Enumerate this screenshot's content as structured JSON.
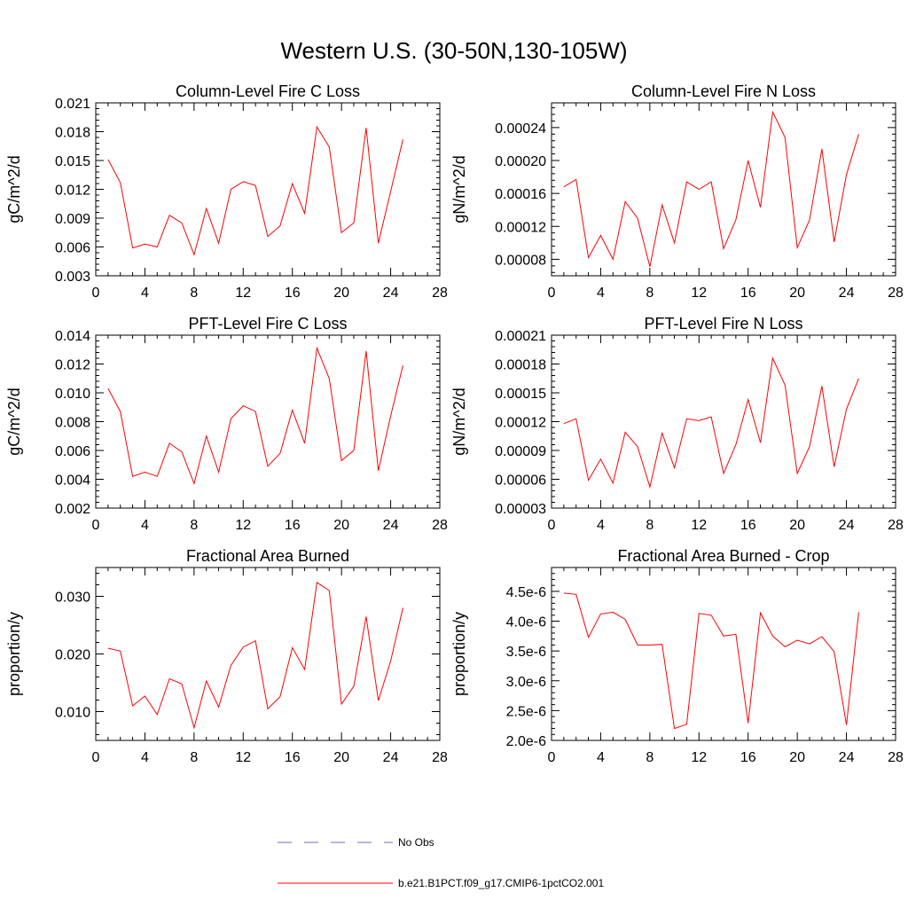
{
  "title": "Western U.S. (30-50N,130-105W)",
  "legend": {
    "items": [
      {
        "label": "No Obs",
        "color": "#6b6bd6",
        "style": "dashed"
      },
      {
        "label": "b.e21.B1PCT.f09_g17.CMIP6-1pctCO2.001",
        "color": "#ff0000",
        "style": "solid"
      }
    ]
  },
  "chart_data": [
    {
      "type": "line",
      "title": "Column-Level Fire C Loss",
      "ylabel": "gC/m^2/d",
      "xlim": [
        0,
        28
      ],
      "ylim": [
        0.003,
        0.021
      ],
      "xticks": [
        0,
        4,
        8,
        12,
        16,
        20,
        24,
        28
      ],
      "yticks": [
        0.003,
        0.006,
        0.009,
        0.012,
        0.015,
        0.018,
        0.021
      ],
      "ytick_labels": [
        "0.003",
        "0.006",
        "0.009",
        "0.012",
        "0.015",
        "0.018",
        "0.021"
      ],
      "series": [
        {
          "color": "#ff0000",
          "x": [
            1,
            2,
            3,
            4,
            5,
            6,
            7,
            8,
            9,
            10,
            11,
            12,
            13,
            14,
            15,
            16,
            17,
            18,
            19,
            20,
            21,
            22,
            23,
            24,
            25
          ],
          "values": [
            0.0151,
            0.0127,
            0.0059,
            0.0063,
            0.006,
            0.0093,
            0.0085,
            0.0052,
            0.01,
            0.0064,
            0.012,
            0.0128,
            0.0124,
            0.0071,
            0.0082,
            0.0126,
            0.0095,
            0.0185,
            0.0164,
            0.0075,
            0.0085,
            0.0184,
            0.0064,
            0.0118,
            0.0172
          ]
        }
      ]
    },
    {
      "type": "line",
      "title": "Column-Level Fire N Loss",
      "ylabel": "gN/m^2/d",
      "xlim": [
        0,
        28
      ],
      "ylim": [
        6e-05,
        0.00027
      ],
      "xticks": [
        0,
        4,
        8,
        12,
        16,
        20,
        24,
        28
      ],
      "yticks": [
        8e-05,
        0.00012,
        0.00016,
        0.0002,
        0.00024
      ],
      "ytick_labels": [
        "0.00008",
        "0.00012",
        "0.00016",
        "0.00020",
        "0.00024"
      ],
      "series": [
        {
          "color": "#ff0000",
          "x": [
            1,
            2,
            3,
            4,
            5,
            6,
            7,
            8,
            9,
            10,
            11,
            12,
            13,
            14,
            15,
            16,
            17,
            18,
            19,
            20,
            21,
            22,
            23,
            24,
            25
          ],
          "values": [
            0.000168,
            0.000177,
            8.2e-05,
            0.000109,
            8e-05,
            0.00015,
            0.00013,
            7.1e-05,
            0.000146,
            0.0001,
            0.000174,
            0.000165,
            0.000174,
            9.3e-05,
            0.000128,
            0.0002,
            0.000143,
            0.000259,
            0.000228,
            9.4e-05,
            0.000128,
            0.000214,
            0.000101,
            0.000183,
            0.000232
          ]
        }
      ]
    },
    {
      "type": "line",
      "title": "PFT-Level Fire C Loss",
      "ylabel": "gC/m^2/d",
      "xlim": [
        0,
        28
      ],
      "ylim": [
        0.002,
        0.014
      ],
      "xticks": [
        0,
        4,
        8,
        12,
        16,
        20,
        24,
        28
      ],
      "yticks": [
        0.002,
        0.004,
        0.006,
        0.008,
        0.01,
        0.012,
        0.014
      ],
      "ytick_labels": [
        "0.002",
        "0.004",
        "0.006",
        "0.008",
        "0.010",
        "0.012",
        "0.014"
      ],
      "series": [
        {
          "color": "#ff0000",
          "x": [
            1,
            2,
            3,
            4,
            5,
            6,
            7,
            8,
            9,
            10,
            11,
            12,
            13,
            14,
            15,
            16,
            17,
            18,
            19,
            20,
            21,
            22,
            23,
            24,
            25
          ],
          "values": [
            0.0103,
            0.0087,
            0.0042,
            0.0045,
            0.0042,
            0.0065,
            0.0059,
            0.0037,
            0.007,
            0.0045,
            0.0082,
            0.0091,
            0.0087,
            0.0049,
            0.0058,
            0.0088,
            0.0065,
            0.0131,
            0.011,
            0.0053,
            0.006,
            0.0129,
            0.0046,
            0.0084,
            0.0119
          ]
        }
      ]
    },
    {
      "type": "line",
      "title": "PFT-Level Fire N Loss",
      "ylabel": "gN/m^2/d",
      "xlim": [
        0,
        28
      ],
      "ylim": [
        3e-05,
        0.00021
      ],
      "xticks": [
        0,
        4,
        8,
        12,
        16,
        20,
        24,
        28
      ],
      "yticks": [
        3e-05,
        6e-05,
        9e-05,
        0.00012,
        0.00015,
        0.00018,
        0.00021
      ],
      "ytick_labels": [
        "0.00003",
        "0.00006",
        "0.00009",
        "0.00012",
        "0.00015",
        "0.00018",
        "0.00021"
      ],
      "series": [
        {
          "color": "#ff0000",
          "x": [
            1,
            2,
            3,
            4,
            5,
            6,
            7,
            8,
            9,
            10,
            11,
            12,
            13,
            14,
            15,
            16,
            17,
            18,
            19,
            20,
            21,
            22,
            23,
            24,
            25
          ],
          "values": [
            0.000118,
            0.000123,
            5.9e-05,
            8.1e-05,
            5.6e-05,
            0.000109,
            9.4e-05,
            5.2e-05,
            0.000108,
            7.2e-05,
            0.000123,
            0.000121,
            0.000125,
            6.6e-05,
            9.6e-05,
            0.000143,
            9.8e-05,
            0.000186,
            0.000158,
            6.6e-05,
            9.4e-05,
            0.000157,
            7.3e-05,
            0.000133,
            0.000165
          ]
        }
      ]
    },
    {
      "type": "line",
      "title": "Fractional Area Burned",
      "ylabel": "proportion/y",
      "xlim": [
        0,
        28
      ],
      "ylim": [
        0.005,
        0.035
      ],
      "xticks": [
        0,
        4,
        8,
        12,
        16,
        20,
        24,
        28
      ],
      "yticks": [
        0.01,
        0.02,
        0.03
      ],
      "ytick_labels": [
        "0.010",
        "0.020",
        "0.030"
      ],
      "minor_y_step": 0.002,
      "series": [
        {
          "color": "#ff0000",
          "x": [
            1,
            2,
            3,
            4,
            5,
            6,
            7,
            8,
            9,
            10,
            11,
            12,
            13,
            14,
            15,
            16,
            17,
            18,
            19,
            20,
            21,
            22,
            23,
            24,
            25
          ],
          "values": [
            0.021,
            0.0205,
            0.011,
            0.0127,
            0.0095,
            0.0157,
            0.0148,
            0.0072,
            0.0153,
            0.0108,
            0.018,
            0.0212,
            0.0223,
            0.0105,
            0.0126,
            0.0211,
            0.0173,
            0.0324,
            0.031,
            0.0113,
            0.0144,
            0.0265,
            0.0119,
            0.0188,
            0.028
          ]
        }
      ]
    },
    {
      "type": "line",
      "title": "Fractional Area Burned - Crop",
      "ylabel": "proportion/y",
      "xlim": [
        0,
        28
      ],
      "ylim": [
        2e-06,
        4.9e-06
      ],
      "xticks": [
        0,
        4,
        8,
        12,
        16,
        20,
        24,
        28
      ],
      "yticks": [
        2e-06,
        2.5e-06,
        3e-06,
        3.5e-06,
        4e-06,
        4.5e-06
      ],
      "ytick_labels": [
        "2.0e-6",
        "2.5e-6",
        "3.0e-6",
        "3.5e-6",
        "4.0e-6",
        "4.5e-6"
      ],
      "minor_y_step": 1e-07,
      "series": [
        {
          "color": "#ff0000",
          "x": [
            1,
            2,
            3,
            4,
            5,
            6,
            7,
            8,
            9,
            10,
            11,
            12,
            13,
            14,
            15,
            16,
            17,
            18,
            19,
            20,
            21,
            22,
            23,
            24,
            25
          ],
          "values": [
            4.47e-06,
            4.45e-06,
            3.73e-06,
            4.12e-06,
            4.15e-06,
            4.03e-06,
            3.6e-06,
            3.6e-06,
            3.61e-06,
            2.2e-06,
            2.27e-06,
            4.13e-06,
            4.1e-06,
            3.75e-06,
            3.78e-06,
            2.29e-06,
            4.14e-06,
            3.75e-06,
            3.57e-06,
            3.68e-06,
            3.62e-06,
            3.74e-06,
            3.49e-06,
            2.26e-06,
            4.15e-06
          ]
        }
      ]
    }
  ]
}
